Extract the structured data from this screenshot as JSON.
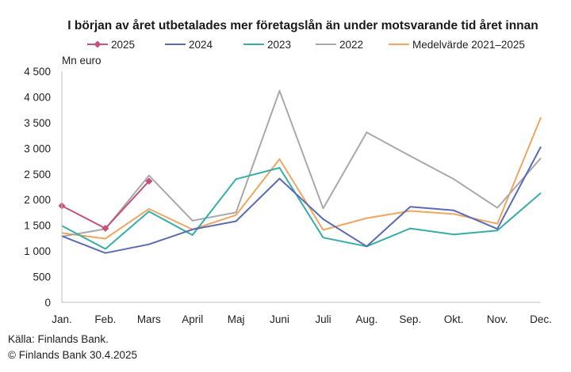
{
  "chart_data": {
    "type": "line",
    "title": "I början av året utbetalades mer företagslån än under motsvarande tid året innan",
    "ylabel": "Mn euro",
    "xlabel": "",
    "ylim": [
      0,
      4500
    ],
    "yticks": [
      0,
      500,
      1000,
      1500,
      2000,
      2500,
      3000,
      3500,
      4000,
      4500
    ],
    "ytick_labels": [
      "0",
      "500",
      "1 000",
      "1 500",
      "2 000",
      "2 500",
      "3 000",
      "3 500",
      "4 000",
      "4 500"
    ],
    "categories": [
      "Jan.",
      "Feb.",
      "Mars",
      "April",
      "Maj",
      "Juni",
      "Juli",
      "Aug.",
      "Sep.",
      "Okt.",
      "Nov.",
      "Dec."
    ],
    "grid": false,
    "legend": "top",
    "series": [
      {
        "name": "2025",
        "color": "#c4507c",
        "marker": "diamond",
        "values": [
          1880,
          1440,
          2360,
          null,
          null,
          null,
          null,
          null,
          null,
          null,
          null,
          null
        ]
      },
      {
        "name": "2024",
        "color": "#5b6bb2",
        "marker": "none",
        "values": [
          1290,
          960,
          1130,
          1420,
          1580,
          2410,
          1620,
          1090,
          1860,
          1790,
          1430,
          3030
        ]
      },
      {
        "name": "2023",
        "color": "#36ada9",
        "marker": "none",
        "values": [
          1490,
          1040,
          1770,
          1310,
          2400,
          2620,
          1260,
          1090,
          1440,
          1320,
          1400,
          2130
        ]
      },
      {
        "name": "2022",
        "color": "#a9a9a9",
        "marker": "none",
        "values": [
          1280,
          1430,
          2470,
          1590,
          1750,
          4120,
          1830,
          3310,
          2850,
          2400,
          1840,
          2810
        ]
      },
      {
        "name": "Medelvärde 2021–2025",
        "color": "#eea660",
        "marker": "none",
        "values": [
          1350,
          1240,
          1820,
          1420,
          1700,
          2790,
          1410,
          1640,
          1780,
          1720,
          1530,
          3600
        ]
      }
    ]
  },
  "footer": {
    "source": "Källa: Finlands Bank.",
    "copyright": "© Finlands Bank 30.4.2025"
  }
}
